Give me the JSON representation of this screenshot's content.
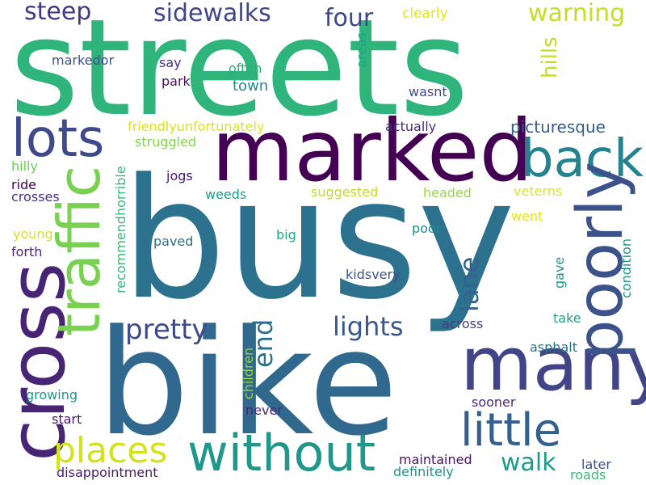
{
  "words": [
    {
      "text": "streets",
      "color": "#2fb47c"
    },
    {
      "text": "busy",
      "color": "#2c728e"
    },
    {
      "text": "bike",
      "color": "#31688e"
    },
    {
      "text": "marked",
      "color": "#440154"
    },
    {
      "text": "cross",
      "color": "#482475"
    },
    {
      "text": "traffic",
      "color": "#7ad151"
    },
    {
      "text": "lots",
      "color": "#3e4a89"
    },
    {
      "text": "back",
      "color": "#26828e"
    },
    {
      "text": "many",
      "color": "#414487"
    },
    {
      "text": "poorly",
      "color": "#3b528b"
    },
    {
      "text": "little",
      "color": "#355f8d"
    },
    {
      "text": "without",
      "color": "#1f988b"
    },
    {
      "text": "places",
      "color": "#d2e21b"
    },
    {
      "text": "pretty",
      "color": "#3e4989"
    },
    {
      "text": "lights",
      "color": "#38588c"
    },
    {
      "text": "walk",
      "color": "#1e9b8a"
    },
    {
      "text": "lane",
      "color": "#33638d"
    },
    {
      "text": "end",
      "color": "#2e6e8e"
    },
    {
      "text": "steep",
      "color": "#453781"
    },
    {
      "text": "sidewalks",
      "color": "#3f4788"
    },
    {
      "text": "four",
      "color": "#3f4889"
    },
    {
      "text": "warning",
      "color": "#c2df23"
    },
    {
      "text": "hills",
      "color": "#bddf26"
    },
    {
      "text": "clearly",
      "color": "#e5e419"
    },
    {
      "text": "markedor",
      "color": "#3b528b"
    },
    {
      "text": "say",
      "color": "#46307e"
    },
    {
      "text": "often",
      "color": "#29af7f"
    },
    {
      "text": "areas",
      "color": "#20a486"
    },
    {
      "text": "park",
      "color": "#471365"
    },
    {
      "text": "town",
      "color": "#23898e"
    },
    {
      "text": "wasnt",
      "color": "#3e4a89"
    },
    {
      "text": "friendlyunfortunately",
      "color": "#dde318"
    },
    {
      "text": "actually",
      "color": "#472c7a"
    },
    {
      "text": "picturesque",
      "color": "#365d8d"
    },
    {
      "text": "struggled",
      "color": "#84d44b"
    },
    {
      "text": "hilly",
      "color": "#6ccd5a"
    },
    {
      "text": "jogs",
      "color": "#48186a"
    },
    {
      "text": "recommendhorrible",
      "color": "#35b779"
    },
    {
      "text": "ride",
      "color": "#440154"
    },
    {
      "text": "suggested",
      "color": "#bddf26"
    },
    {
      "text": "headed",
      "color": "#95d840"
    },
    {
      "text": "veterns",
      "color": "#e2e418"
    },
    {
      "text": "crosses",
      "color": "#46327e"
    },
    {
      "text": "weeds",
      "color": "#1f9e89"
    },
    {
      "text": "went",
      "color": "#e2e418"
    },
    {
      "text": "young",
      "color": "#d8e219"
    },
    {
      "text": "big",
      "color": "#22a884"
    },
    {
      "text": "poor",
      "color": "#228c8d"
    },
    {
      "text": "paved",
      "color": "#2c718e"
    },
    {
      "text": "forth",
      "color": "#482576"
    },
    {
      "text": "condition",
      "color": "#21918c"
    },
    {
      "text": "gave",
      "color": "#1f968b"
    },
    {
      "text": "kidsvery",
      "color": "#3b528b"
    },
    {
      "text": "across",
      "color": "#433e85"
    },
    {
      "text": "take",
      "color": "#1fa088"
    },
    {
      "text": "asphalt",
      "color": "#2c728e"
    },
    {
      "text": "children",
      "color": "#98d83e"
    },
    {
      "text": "growing",
      "color": "#1f968b"
    },
    {
      "text": "sooner",
      "color": "#482878"
    },
    {
      "text": "never",
      "color": "#482475"
    },
    {
      "text": "start",
      "color": "#48186a"
    },
    {
      "text": "maintained",
      "color": "#471164"
    },
    {
      "text": "later",
      "color": "#3b528b"
    },
    {
      "text": "disappointment",
      "color": "#481b6d"
    },
    {
      "text": "definitely",
      "color": "#21918c"
    },
    {
      "text": "roads",
      "color": "#38b977"
    }
  ]
}
